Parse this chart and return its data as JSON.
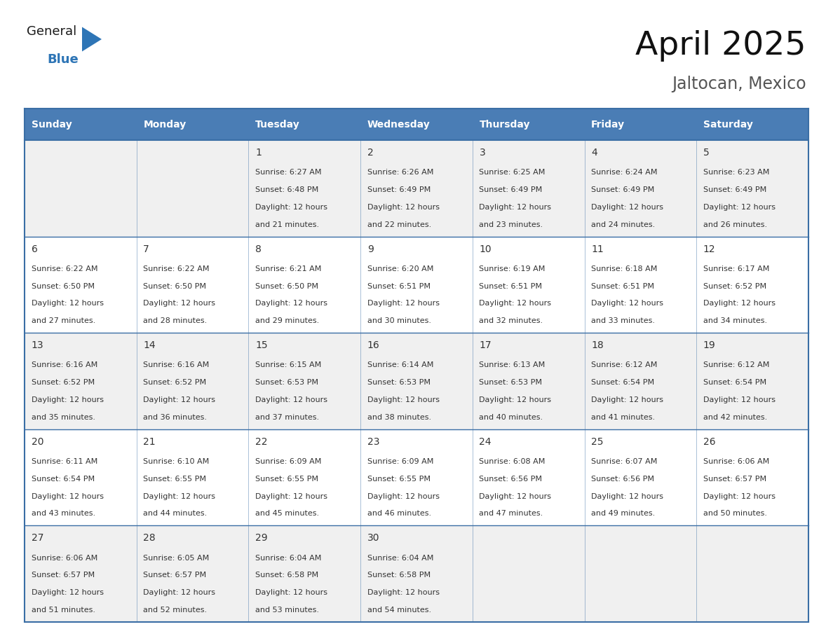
{
  "title": "April 2025",
  "subtitle": "Jaltocan, Mexico",
  "header_color": "#4a7db5",
  "header_text_color": "#ffffff",
  "cell_bg_color_even": "#f0f0f0",
  "cell_bg_color_odd": "#ffffff",
  "line_color": "#3a6ea5",
  "text_color": "#333333",
  "days_of_week": [
    "Sunday",
    "Monday",
    "Tuesday",
    "Wednesday",
    "Thursday",
    "Friday",
    "Saturday"
  ],
  "weeks": [
    [
      {
        "day": "",
        "sunrise": "",
        "sunset": "",
        "daylight": ""
      },
      {
        "day": "",
        "sunrise": "",
        "sunset": "",
        "daylight": ""
      },
      {
        "day": "1",
        "sunrise": "6:27 AM",
        "sunset": "6:48 PM",
        "daylight": "12 hours and 21 minutes."
      },
      {
        "day": "2",
        "sunrise": "6:26 AM",
        "sunset": "6:49 PM",
        "daylight": "12 hours and 22 minutes."
      },
      {
        "day": "3",
        "sunrise": "6:25 AM",
        "sunset": "6:49 PM",
        "daylight": "12 hours and 23 minutes."
      },
      {
        "day": "4",
        "sunrise": "6:24 AM",
        "sunset": "6:49 PM",
        "daylight": "12 hours and 24 minutes."
      },
      {
        "day": "5",
        "sunrise": "6:23 AM",
        "sunset": "6:49 PM",
        "daylight": "12 hours and 26 minutes."
      }
    ],
    [
      {
        "day": "6",
        "sunrise": "6:22 AM",
        "sunset": "6:50 PM",
        "daylight": "12 hours and 27 minutes."
      },
      {
        "day": "7",
        "sunrise": "6:22 AM",
        "sunset": "6:50 PM",
        "daylight": "12 hours and 28 minutes."
      },
      {
        "day": "8",
        "sunrise": "6:21 AM",
        "sunset": "6:50 PM",
        "daylight": "12 hours and 29 minutes."
      },
      {
        "day": "9",
        "sunrise": "6:20 AM",
        "sunset": "6:51 PM",
        "daylight": "12 hours and 30 minutes."
      },
      {
        "day": "10",
        "sunrise": "6:19 AM",
        "sunset": "6:51 PM",
        "daylight": "12 hours and 32 minutes."
      },
      {
        "day": "11",
        "sunrise": "6:18 AM",
        "sunset": "6:51 PM",
        "daylight": "12 hours and 33 minutes."
      },
      {
        "day": "12",
        "sunrise": "6:17 AM",
        "sunset": "6:52 PM",
        "daylight": "12 hours and 34 minutes."
      }
    ],
    [
      {
        "day": "13",
        "sunrise": "6:16 AM",
        "sunset": "6:52 PM",
        "daylight": "12 hours and 35 minutes."
      },
      {
        "day": "14",
        "sunrise": "6:16 AM",
        "sunset": "6:52 PM",
        "daylight": "12 hours and 36 minutes."
      },
      {
        "day": "15",
        "sunrise": "6:15 AM",
        "sunset": "6:53 PM",
        "daylight": "12 hours and 37 minutes."
      },
      {
        "day": "16",
        "sunrise": "6:14 AM",
        "sunset": "6:53 PM",
        "daylight": "12 hours and 38 minutes."
      },
      {
        "day": "17",
        "sunrise": "6:13 AM",
        "sunset": "6:53 PM",
        "daylight": "12 hours and 40 minutes."
      },
      {
        "day": "18",
        "sunrise": "6:12 AM",
        "sunset": "6:54 PM",
        "daylight": "12 hours and 41 minutes."
      },
      {
        "day": "19",
        "sunrise": "6:12 AM",
        "sunset": "6:54 PM",
        "daylight": "12 hours and 42 minutes."
      }
    ],
    [
      {
        "day": "20",
        "sunrise": "6:11 AM",
        "sunset": "6:54 PM",
        "daylight": "12 hours and 43 minutes."
      },
      {
        "day": "21",
        "sunrise": "6:10 AM",
        "sunset": "6:55 PM",
        "daylight": "12 hours and 44 minutes."
      },
      {
        "day": "22",
        "sunrise": "6:09 AM",
        "sunset": "6:55 PM",
        "daylight": "12 hours and 45 minutes."
      },
      {
        "day": "23",
        "sunrise": "6:09 AM",
        "sunset": "6:55 PM",
        "daylight": "12 hours and 46 minutes."
      },
      {
        "day": "24",
        "sunrise": "6:08 AM",
        "sunset": "6:56 PM",
        "daylight": "12 hours and 47 minutes."
      },
      {
        "day": "25",
        "sunrise": "6:07 AM",
        "sunset": "6:56 PM",
        "daylight": "12 hours and 49 minutes."
      },
      {
        "day": "26",
        "sunrise": "6:06 AM",
        "sunset": "6:57 PM",
        "daylight": "12 hours and 50 minutes."
      }
    ],
    [
      {
        "day": "27",
        "sunrise": "6:06 AM",
        "sunset": "6:57 PM",
        "daylight": "12 hours and 51 minutes."
      },
      {
        "day": "28",
        "sunrise": "6:05 AM",
        "sunset": "6:57 PM",
        "daylight": "12 hours and 52 minutes."
      },
      {
        "day": "29",
        "sunrise": "6:04 AM",
        "sunset": "6:58 PM",
        "daylight": "12 hours and 53 minutes."
      },
      {
        "day": "30",
        "sunrise": "6:04 AM",
        "sunset": "6:58 PM",
        "daylight": "12 hours and 54 minutes."
      },
      {
        "day": "",
        "sunrise": "",
        "sunset": "",
        "daylight": ""
      },
      {
        "day": "",
        "sunrise": "",
        "sunset": "",
        "daylight": ""
      },
      {
        "day": "",
        "sunrise": "",
        "sunset": "",
        "daylight": ""
      }
    ]
  ],
  "logo_text_general": "General",
  "logo_text_blue": "Blue",
  "logo_black_color": "#1a1a1a",
  "logo_blue_color": "#2e75b6",
  "title_fontsize": 34,
  "subtitle_fontsize": 17,
  "header_fontsize": 10,
  "day_num_fontsize": 10,
  "cell_text_fontsize": 8
}
